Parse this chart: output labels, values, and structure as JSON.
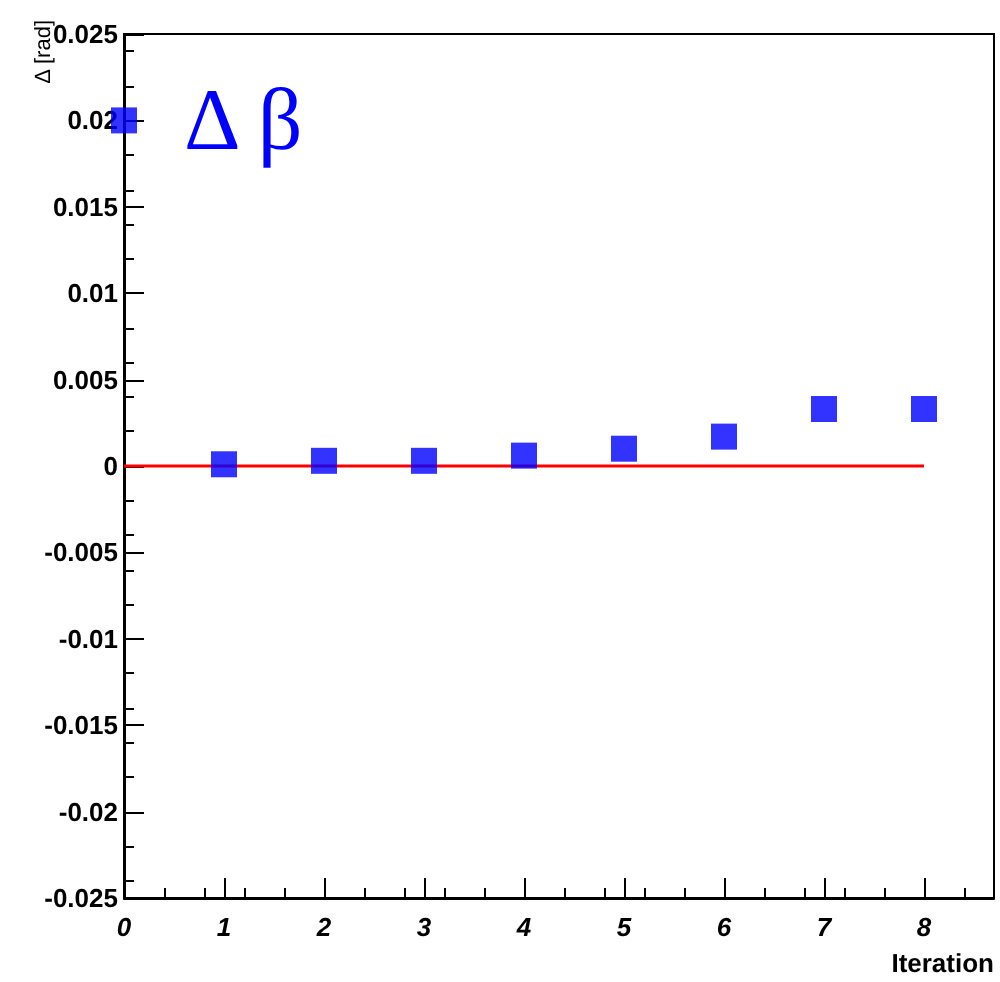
{
  "chart_data": {
    "type": "scatter",
    "xlabel": "Iteration",
    "ylabel": "Δ [rad]",
    "annotations": [
      "Δ β"
    ],
    "x": [
      0,
      1,
      2,
      3,
      4,
      5,
      6,
      7,
      8
    ],
    "series": [
      {
        "color": "#0000ff",
        "marker": "square",
        "values": [
          0.02,
          0.0001,
          0.0003,
          0.0003,
          0.0006,
          0.001,
          0.0017,
          0.0033,
          0.0033
        ]
      },
      {
        "type": "line",
        "color": "#ff0000",
        "marker": "none",
        "x": [
          0,
          8
        ],
        "values": [
          0,
          0
        ]
      }
    ],
    "xlim": [
      0,
      8.7
    ],
    "xticks": [
      0,
      1,
      2,
      3,
      4,
      5,
      6,
      7,
      8
    ],
    "ylim": [
      -0.025,
      0.025
    ],
    "yticks": [
      -0.025,
      -0.02,
      -0.015,
      -0.01,
      -0.005,
      0,
      0.005,
      0.01,
      0.015,
      0.02,
      0.025
    ],
    "grid": false
  }
}
